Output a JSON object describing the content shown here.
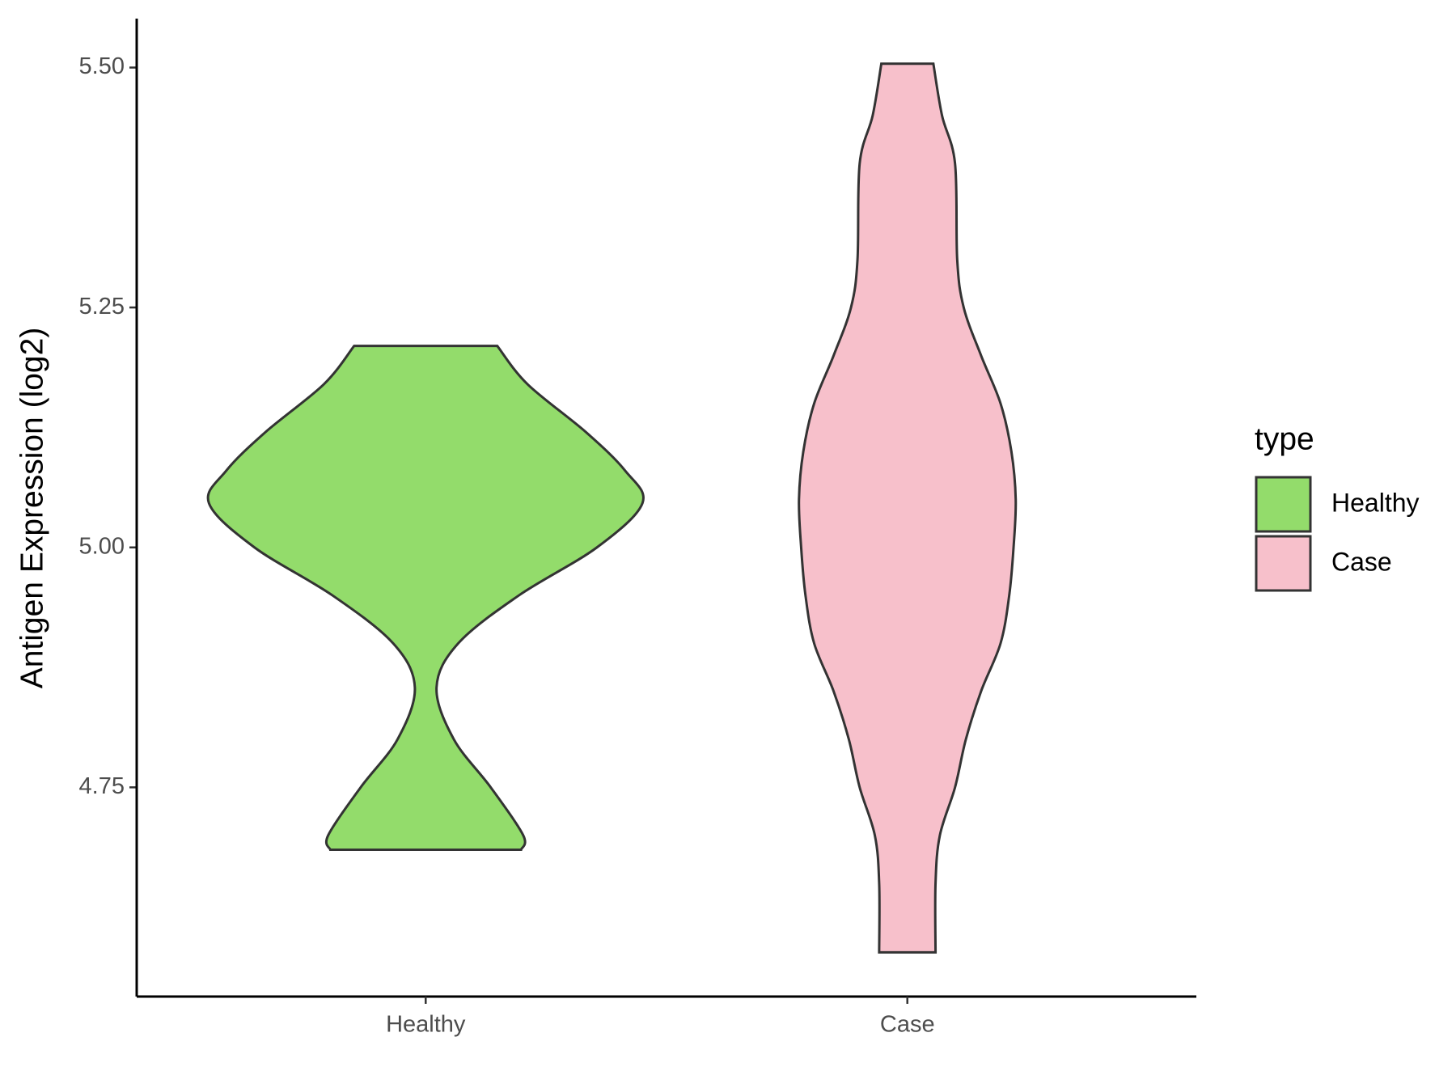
{
  "chart_data": {
    "type": "violin",
    "ylabel": "Antigen Expression (log2)",
    "categories": [
      "Healthy",
      "Case"
    ],
    "legend_title": "type",
    "legend": "right",
    "ylim": [
      4.532,
      5.551
    ],
    "yticks": [
      {
        "value": 4.75,
        "label": "4.75"
      },
      {
        "value": 5.0,
        "label": "5.00"
      },
      5.25,
      {
        "value": 5.5,
        "label": "5.50"
      }
    ],
    "series": [
      {
        "name": "Healthy",
        "color": "#93dc6b",
        "values": [
          5.21,
          5.17,
          5.12,
          5.08,
          5.046,
          5.0,
          4.95,
          4.9,
          4.854,
          4.8,
          4.75,
          4.7,
          4.685
        ],
        "density": [
          0.33,
          0.47,
          0.74,
          0.92,
          1.0,
          0.79,
          0.43,
          0.15,
          0.05,
          0.13,
          0.3,
          0.45,
          0.44
        ]
      },
      {
        "name": "Case",
        "color": "#f7c0cb",
        "values": [
          5.504,
          5.45,
          5.4,
          5.3,
          5.25,
          5.2,
          5.15,
          5.1,
          5.05,
          5.0,
          4.95,
          4.9,
          4.85,
          4.8,
          4.75,
          4.7,
          4.65,
          4.578
        ],
        "density": [
          0.12,
          0.16,
          0.22,
          0.23,
          0.26,
          0.34,
          0.43,
          0.48,
          0.5,
          0.49,
          0.47,
          0.43,
          0.34,
          0.27,
          0.22,
          0.15,
          0.13,
          0.13
        ]
      }
    ]
  }
}
